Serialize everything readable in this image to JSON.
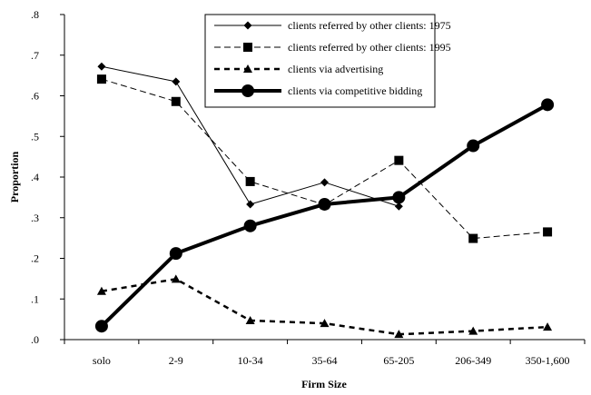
{
  "chart_data": {
    "type": "line",
    "title": "",
    "xlabel": "Firm Size",
    "ylabel": "Proportion",
    "categories": [
      "solo",
      "2-9",
      "10-34",
      "35-64",
      "65-205",
      "206-349",
      "350-1,600"
    ],
    "ylim": [
      0,
      0.8
    ],
    "yticks": [
      0,
      0.1,
      0.2,
      0.3,
      0.4,
      0.5,
      0.6,
      0.7,
      0.8
    ],
    "ytick_labels": [
      ".0",
      ".1",
      ".2",
      ".3",
      ".4",
      ".5",
      ".6",
      ".7",
      ".8"
    ],
    "grid": false,
    "legend_position": "top-right",
    "series": [
      {
        "name": "clients referred by other clients: 1975",
        "values": [
          0.672,
          0.635,
          null,
          0.387,
          0.328,
          null,
          null
        ],
        "values_note": "",
        "style": "thin-solid",
        "marker": "diamond",
        "color": "#000000"
      },
      {
        "name": "clients referred by other clients: 1995",
        "values": [
          0.641,
          0.586,
          0.389,
          0.332,
          0.441,
          0.249,
          0.265
        ],
        "style": "dashed",
        "marker": "square",
        "color": "#000000"
      },
      {
        "name": "clients via advertising",
        "values": [
          0.119,
          0.149,
          0.047,
          0.04,
          0.013,
          0.021,
          0.031
        ],
        "style": "thick-dashed",
        "marker": "triangle",
        "color": "#000000"
      },
      {
        "name": "clients via competitive bidding",
        "values": [
          0.033,
          0.212,
          0.28,
          0.333,
          0.35,
          0.477,
          0.578
        ],
        "style": "thick-solid",
        "marker": "circle",
        "color": "#000000"
      }
    ]
  }
}
